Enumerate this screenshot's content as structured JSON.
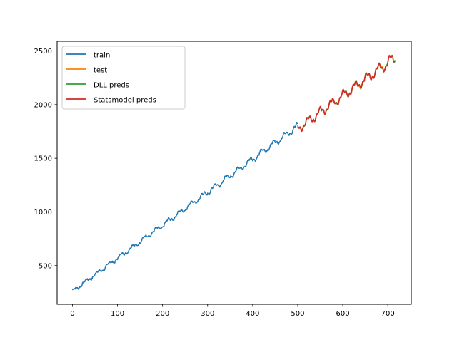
{
  "chart_data": {
    "type": "line",
    "title": "",
    "xlabel": "",
    "ylabel": "",
    "xlim": [
      -34,
      752
    ],
    "ylim": [
      140,
      2590
    ],
    "xticks": [
      0,
      100,
      200,
      300,
      400,
      500,
      600,
      700
    ],
    "yticks": [
      500,
      1000,
      1500,
      2000,
      2500
    ],
    "legend_position": "top-left",
    "series": [
      {
        "name": "train",
        "color": "#1f77b4",
        "x_start": 0,
        "x_end": 500,
        "y_start": 262,
        "y_end": 1800,
        "amplitude": 35
      },
      {
        "name": "test",
        "color": "#ff7f0e",
        "x_start": 500,
        "x_end": 716,
        "y_start": 1775,
        "y_end": 2440,
        "amplitude": 45
      },
      {
        "name": "DLL preds",
        "color": "#2ca02c",
        "x_start": 500,
        "x_end": 716,
        "y_start": 1775,
        "y_end": 2440,
        "amplitude": 45
      },
      {
        "name": "Statsmodel preds",
        "color": "#d62728",
        "x_start": 500,
        "x_end": 716,
        "y_start": 1775,
        "y_end": 2440,
        "amplitude": 45
      }
    ]
  }
}
